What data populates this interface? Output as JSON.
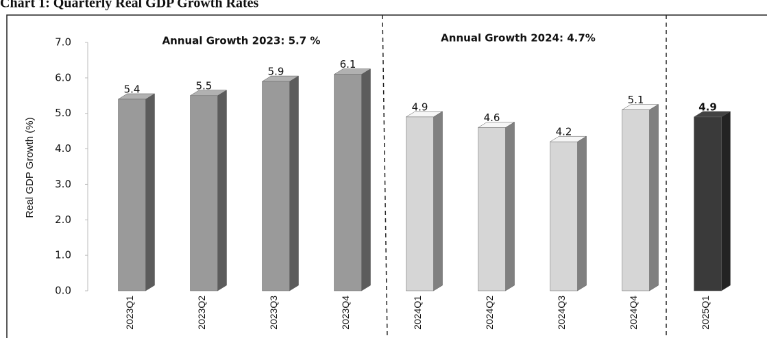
{
  "chart_data": {
    "type": "bar3d",
    "title": "Chart 1: Quarterly Real GDP Growth Rates",
    "ylabel": "Real GDP Growth (%)",
    "annotations": [
      "Annual Growth 2023: 5.7 %",
      "Annual Growth 2024: 4.7%"
    ],
    "categories": [
      "2023Q1",
      "2023Q2",
      "2023Q3",
      "2023Q4",
      "2024Q1",
      "2024Q2",
      "2024Q3",
      "2024Q4",
      "2025Q1"
    ],
    "values": [
      5.4,
      5.5,
      5.9,
      6.1,
      4.9,
      4.6,
      4.2,
      5.1,
      4.9
    ],
    "colors": [
      "#9a9a9a",
      "#9a9a9a",
      "#9a9a9a",
      "#9a9a9a",
      "#d6d6d6",
      "#d6d6d6",
      "#d6d6d6",
      "#d6d6d6",
      "#3a3a3a"
    ],
    "ylim": [
      0,
      7
    ],
    "yticks": [
      {
        "value": 0,
        "label": "0.0"
      },
      {
        "value": 1,
        "label": "1.0"
      },
      {
        "value": 2,
        "label": "2.0"
      },
      {
        "value": 3,
        "label": "3.0"
      },
      {
        "value": 4,
        "label": "4.0"
      },
      {
        "value": 5,
        "label": "5.0"
      },
      {
        "value": 6,
        "label": "6.0"
      },
      {
        "value": 7,
        "label": "7.0"
      }
    ],
    "grid": false
  }
}
